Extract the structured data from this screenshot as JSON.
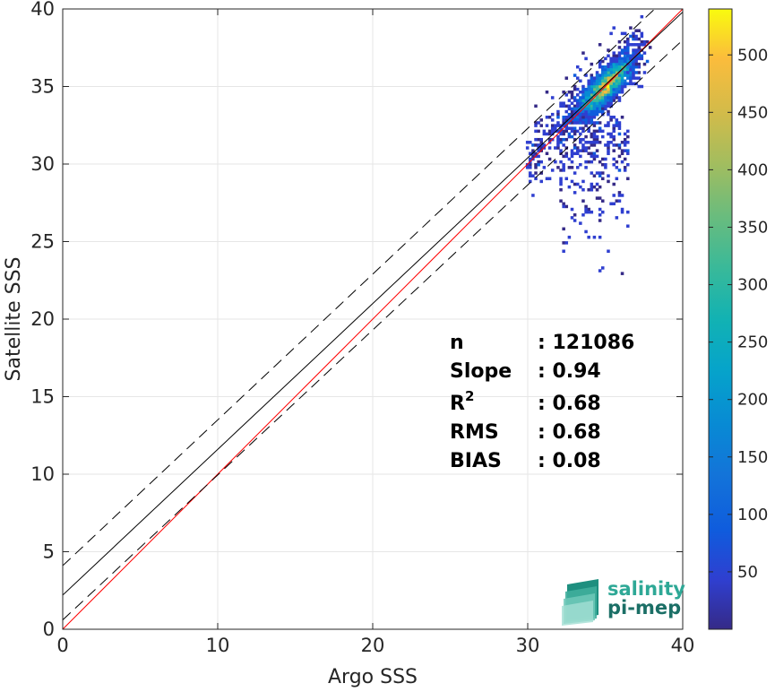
{
  "chart_data": {
    "type": "heatmap",
    "subtype": "2d-density-scatter",
    "xlabel": "Argo SSS",
    "ylabel": "Satellite SSS",
    "xlim": [
      0,
      40
    ],
    "ylim": [
      0,
      40
    ],
    "xticks": [
      0,
      10,
      20,
      30,
      40
    ],
    "yticks": [
      0,
      5,
      10,
      15,
      20,
      25,
      30,
      35,
      40
    ],
    "grid": true,
    "colorbar": {
      "colormap": "parula",
      "range": [
        0,
        540
      ],
      "ticks": [
        50,
        100,
        150,
        200,
        250,
        300,
        350,
        400,
        450,
        500
      ]
    },
    "lines": [
      {
        "name": "one-to-one",
        "color": "#ff0000",
        "style": "solid",
        "points": [
          [
            0,
            0
          ],
          [
            40,
            40
          ]
        ]
      },
      {
        "name": "regression-fit",
        "color": "#000000",
        "style": "solid",
        "points": [
          [
            0,
            2.2
          ],
          [
            40,
            39.8
          ]
        ]
      },
      {
        "name": "upper-bound",
        "color": "#000000",
        "style": "dashed",
        "points": [
          [
            0,
            4.1
          ],
          [
            40,
            41.7
          ]
        ]
      },
      {
        "name": "lower-bound",
        "color": "#000000",
        "style": "dashed",
        "points": [
          [
            0,
            0.6
          ],
          [
            40,
            38.0
          ]
        ]
      }
    ],
    "density_core": {
      "center": [
        35,
        35
      ],
      "x_range": [
        29.5,
        38
      ],
      "y_range": [
        22,
        39.5
      ],
      "peak_count": 540
    },
    "stats": [
      {
        "label": "n",
        "value": ": 121086"
      },
      {
        "label": "Slope",
        "value": ": 0.94"
      },
      {
        "label": "R",
        "superscript": "2",
        "value": ": 0.68"
      },
      {
        "label": "RMS",
        "value": ": 0.68"
      },
      {
        "label": "BIAS",
        "value": ": 0.08"
      }
    ]
  },
  "logo": {
    "line1": "salinity",
    "line2": "pi-mep"
  }
}
